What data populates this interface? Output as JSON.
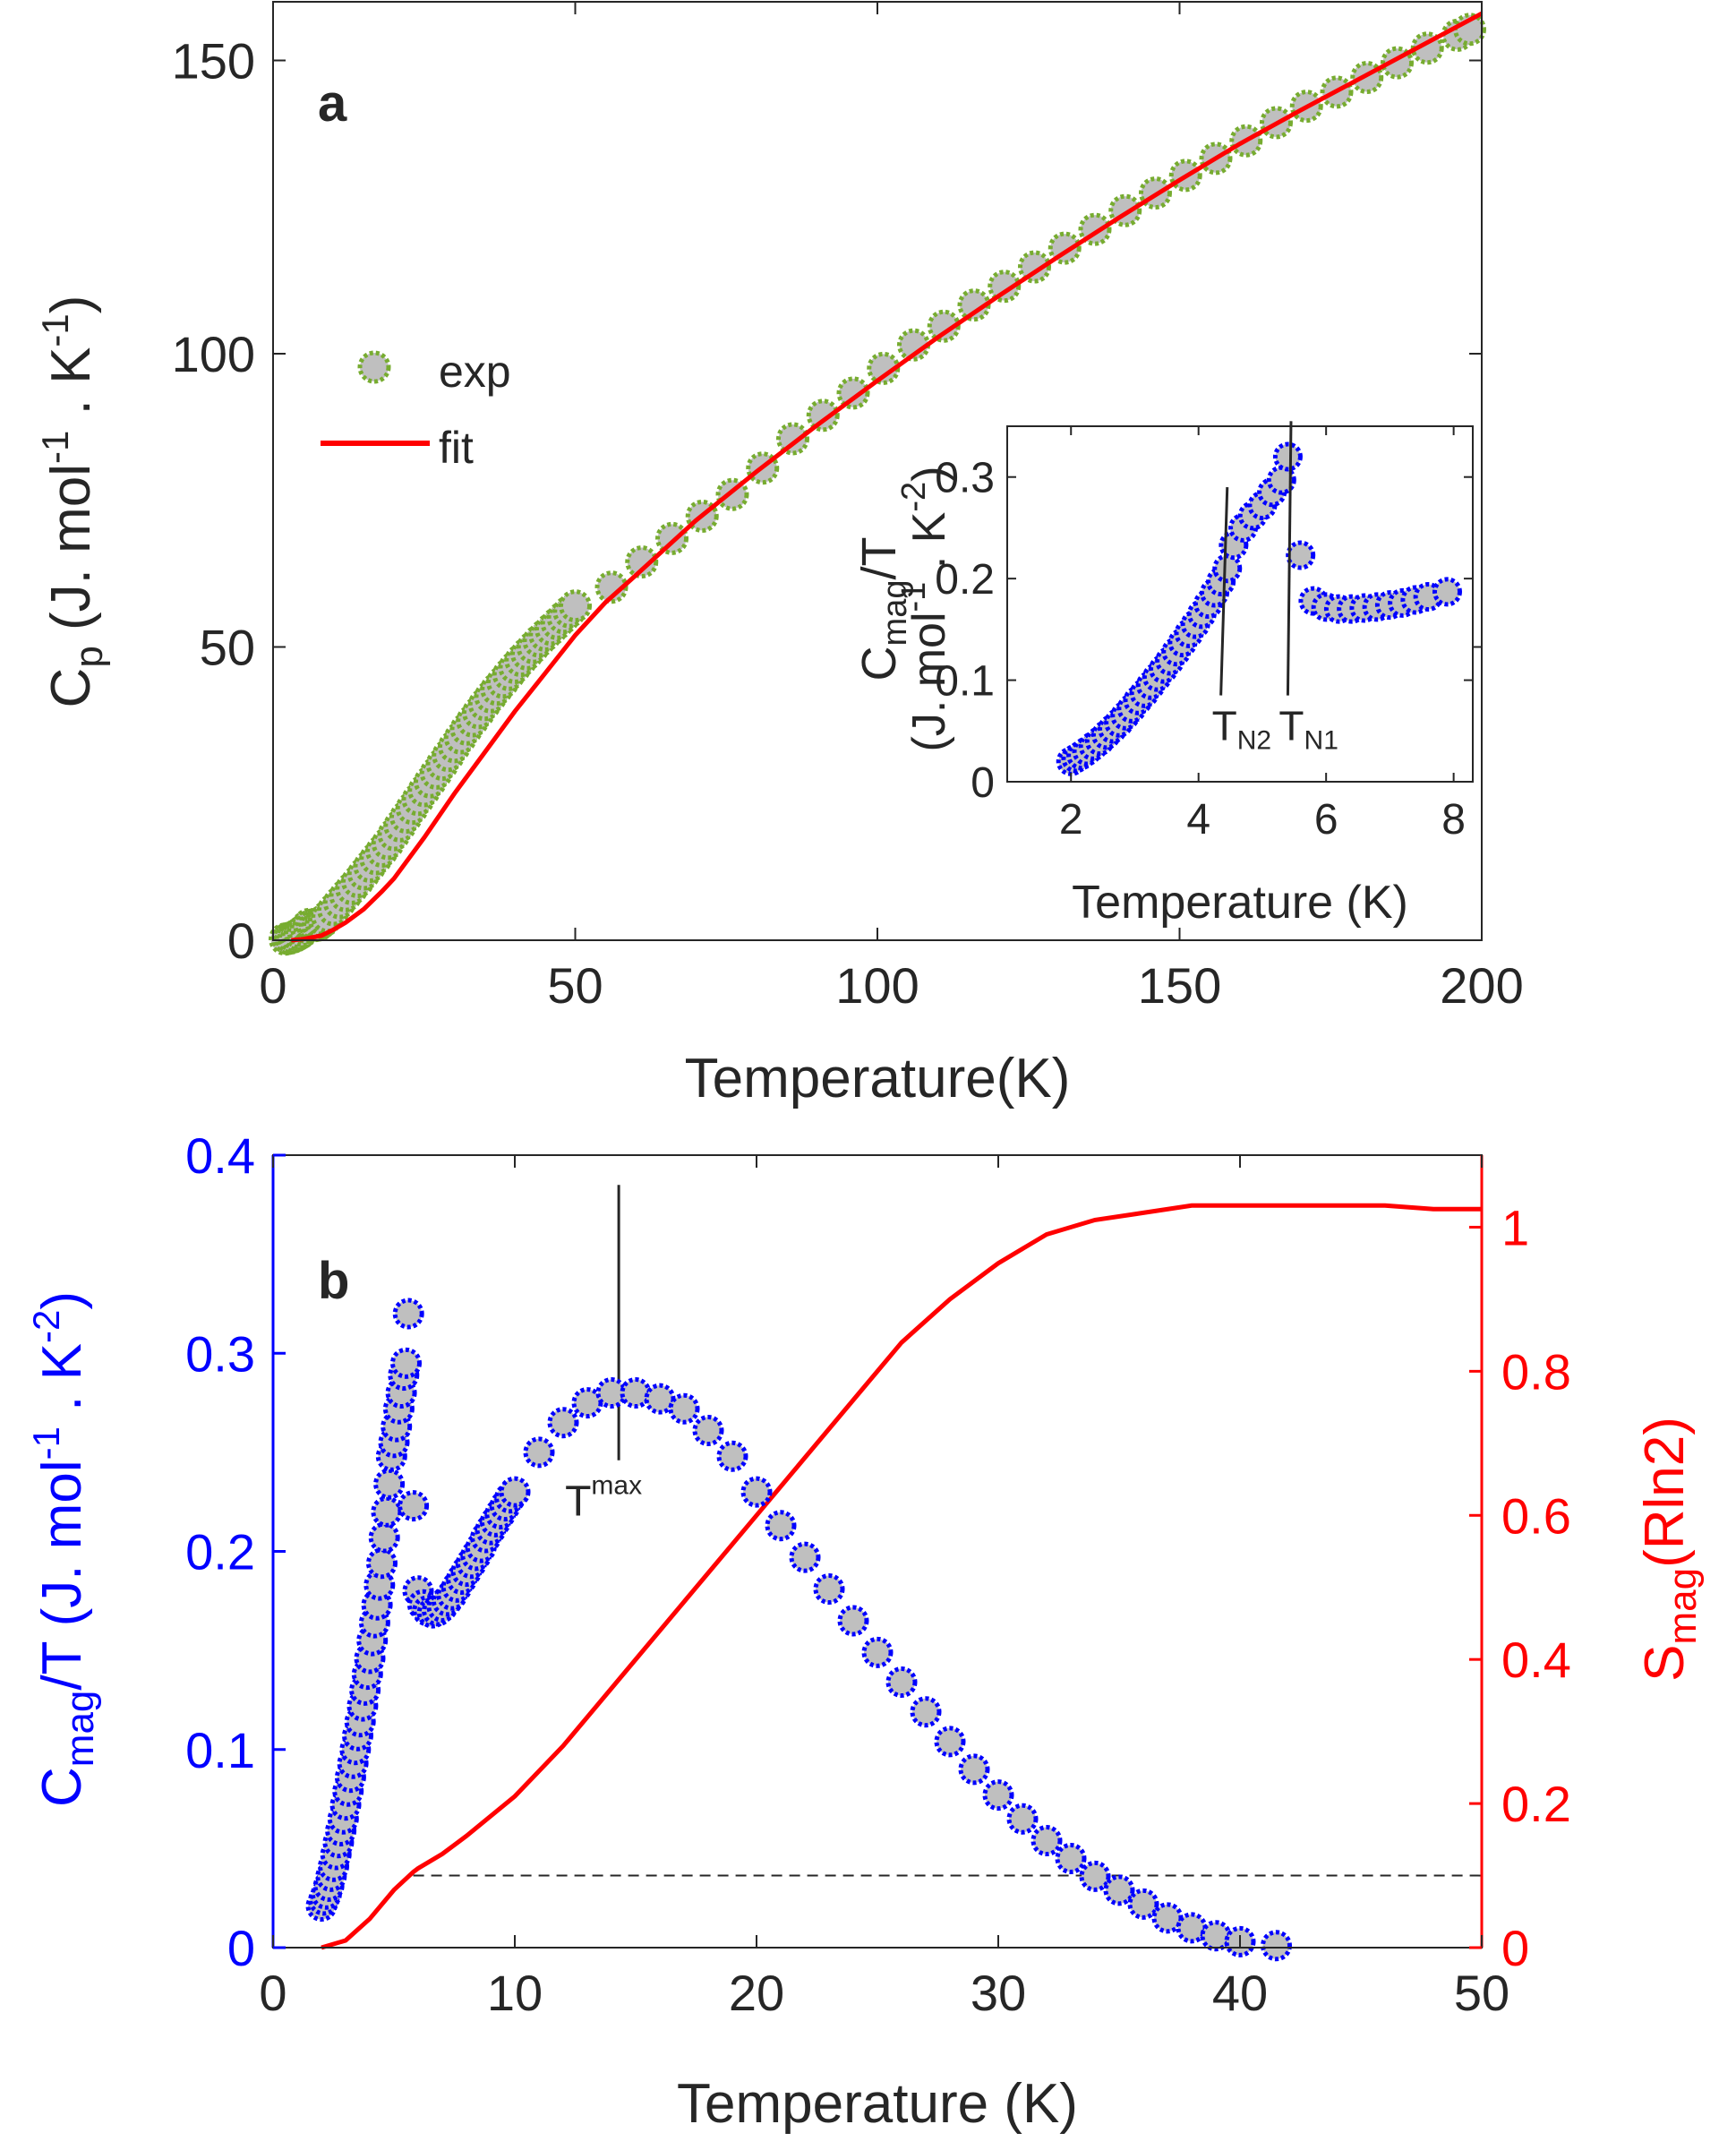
{
  "colors": {
    "exp_face": "#bfbfbf",
    "exp_edge": "#77ac30",
    "fit_line": "#ff0000",
    "blue_marker_face": "#bfbfbf",
    "blue_marker_edge": "#0000ff",
    "blue_axis": "#0000ff",
    "red_axis": "#ff0000",
    "axis": "#262626",
    "text": "#262626"
  },
  "chart_data": [
    {
      "id": "a",
      "panel_label": "a",
      "type": "scatter",
      "xlabel": "Temperature(K)",
      "ylabel": {
        "main": "C",
        "sub": "p",
        "rest_before": " (J. mol",
        "sup1": "-1",
        "mid": " . K",
        "sup2": "-1",
        "close": ")"
      },
      "xlim": [
        0,
        200
      ],
      "ylim": [
        0,
        160
      ],
      "xticks": [
        "0",
        "50",
        "100",
        "150",
        "200"
      ],
      "yticks": [
        "0",
        "50",
        "100",
        "150"
      ],
      "legend": {
        "position": "upper-left",
        "items": [
          {
            "label": "exp",
            "kind": "marker"
          },
          {
            "label": "fit",
            "kind": "line"
          }
        ]
      },
      "series": [
        {
          "name": "exp",
          "x": [
            2,
            2.5,
            3,
            3.5,
            4,
            4.5,
            5,
            5.5,
            6,
            6.5,
            7,
            7.5,
            8,
            8.5,
            9,
            10,
            11,
            12,
            13,
            14,
            15,
            16,
            17,
            18,
            19,
            20,
            21,
            22,
            23,
            24,
            25,
            26,
            27,
            28,
            29,
            30,
            31,
            32,
            33,
            34,
            35,
            36,
            37,
            38,
            39,
            40,
            41,
            42,
            43,
            44,
            45,
            46,
            47,
            48,
            49,
            50,
            56,
            61,
            66,
            71,
            76,
            81,
            86,
            91,
            96,
            101,
            106,
            111,
            116,
            121,
            126,
            131,
            136,
            141,
            146,
            151,
            156,
            161,
            166,
            171,
            176,
            181,
            186,
            191,
            196,
            198
          ],
          "y": [
            0.2,
            0.3,
            0.4,
            0.6,
            0.9,
            1.2,
            1.6,
            2.2,
            2.7,
            2.6,
            2.5,
            2.6,
            3.0,
            3.4,
            4.0,
            5.2,
            6.4,
            7.6,
            8.8,
            10.0,
            11.3,
            12.6,
            13.9,
            15.2,
            16.5,
            18.0,
            19.5,
            21.0,
            22.5,
            24.0,
            25.5,
            27.0,
            28.5,
            30.0,
            31.5,
            33.0,
            34.5,
            36.0,
            37.4,
            38.8,
            40.2,
            41.5,
            42.8,
            44.0,
            45.3,
            46.5,
            47.7,
            48.8,
            49.9,
            51.0,
            52.0,
            53.0,
            54.0,
            55.0,
            56.0,
            57.0,
            60.2,
            64.5,
            68.5,
            72.3,
            76.0,
            80.5,
            85.5,
            89.5,
            93.3,
            97.5,
            101.5,
            104.7,
            108.3,
            111.5,
            114.8,
            118.0,
            121.2,
            124.4,
            127.4,
            130.4,
            133.3,
            136.3,
            139.4,
            142.2,
            144.6,
            147.1,
            149.6,
            152.1,
            154.3,
            155.3
          ]
        },
        {
          "name": "fit",
          "x": [
            3,
            5,
            8,
            10,
            12,
            15,
            18,
            20,
            25,
            30,
            35,
            40,
            45,
            50,
            55,
            60,
            70,
            80,
            90,
            100,
            110,
            120,
            130,
            140,
            150,
            160,
            170,
            180,
            190,
            200
          ],
          "y": [
            0.0,
            0.2,
            0.8,
            1.8,
            3.0,
            5.3,
            8.3,
            10.5,
            17.5,
            25.0,
            32.0,
            39.0,
            45.5,
            52.0,
            57.6,
            62.2,
            71.6,
            79.9,
            87.8,
            95.4,
            102.8,
            109.8,
            116.6,
            123.2,
            129.6,
            135.8,
            141.5,
            147.0,
            152.5,
            158.0
          ]
        }
      ]
    },
    {
      "id": "a-inset",
      "type": "scatter",
      "xlabel": "Temperature (K)",
      "ylabel_line1": {
        "main": "C",
        "sub": "mag",
        "rest": "/T"
      },
      "ylabel_line2": {
        "open": "(J. mol",
        "sup1": "-1",
        "mid": " . K",
        "sup2": "-2",
        "close": ")"
      },
      "xlim": [
        1,
        8.3
      ],
      "ylim": [
        0,
        0.35
      ],
      "xticks": [
        "2",
        "4",
        "6",
        "8"
      ],
      "yticks": [
        "0",
        "0.1",
        "0.2",
        "0.3"
      ],
      "annotations": [
        {
          "label_main": "T",
          "label_sub": "N2",
          "x": 4.5
        },
        {
          "label_main": "T",
          "label_sub": "N1",
          "x": 5.4
        }
      ],
      "series": [
        {
          "name": "Cmag/T",
          "x": [
            2.0,
            2.08,
            2.16,
            2.25,
            2.35,
            2.45,
            2.55,
            2.65,
            2.75,
            2.85,
            2.95,
            3.05,
            3.15,
            3.25,
            3.35,
            3.45,
            3.55,
            3.65,
            3.75,
            3.85,
            3.95,
            4.05,
            4.15,
            4.25,
            4.35,
            4.45,
            4.55,
            4.7,
            4.85,
            5.0,
            5.15,
            5.3,
            5.4,
            5.6,
            5.8,
            6.0,
            6.2,
            6.4,
            6.6,
            6.8,
            7.0,
            7.2,
            7.4,
            7.6,
            7.9
          ],
          "y": [
            0.02,
            0.023,
            0.026,
            0.03,
            0.035,
            0.04,
            0.046,
            0.052,
            0.058,
            0.065,
            0.072,
            0.08,
            0.087,
            0.095,
            0.103,
            0.111,
            0.119,
            0.128,
            0.137,
            0.146,
            0.155,
            0.165,
            0.175,
            0.186,
            0.197,
            0.21,
            0.233,
            0.25,
            0.262,
            0.272,
            0.285,
            0.297,
            0.32,
            0.223,
            0.178,
            0.172,
            0.17,
            0.17,
            0.171,
            0.172,
            0.174,
            0.176,
            0.179,
            0.182,
            0.187
          ]
        }
      ]
    },
    {
      "id": "b",
      "panel_label": "b",
      "type": "scatter",
      "xlabel": "Temperature (K)",
      "ylabel_left": {
        "main": "C",
        "sub": "mag",
        "rest_before": "/T (J. mol",
        "sup1": "-1",
        "mid": " . K",
        "sup2": "-2",
        "close": ")"
      },
      "ylabel_right": {
        "main": "S",
        "sub": "mag",
        "rest": "(Rln2)"
      },
      "xlim": [
        0,
        50
      ],
      "ylim_left": [
        0,
        0.4
      ],
      "ylim_right": [
        0,
        1.1
      ],
      "xticks": [
        "0",
        "10",
        "20",
        "30",
        "40",
        "50"
      ],
      "yticks_left": [
        "0",
        "0.1",
        "0.2",
        "0.3",
        "0.4"
      ],
      "yticks_right": [
        "0",
        "0.2",
        "0.4",
        "0.6",
        "0.8",
        "1"
      ],
      "annotation": {
        "label_main": "T",
        "label_sup": "max",
        "x": 14.3
      },
      "dashed_level_right": 0.1,
      "dashed_x_start": 5.8,
      "series": [
        {
          "name": "Cmag/T",
          "axis": "left",
          "x": [
            2.0,
            2.1,
            2.2,
            2.3,
            2.4,
            2.5,
            2.6,
            2.7,
            2.8,
            2.9,
            3.0,
            3.1,
            3.2,
            3.3,
            3.4,
            3.5,
            3.6,
            3.7,
            3.8,
            3.9,
            4.0,
            4.1,
            4.2,
            4.3,
            4.4,
            4.5,
            4.6,
            4.7,
            4.8,
            4.9,
            5.0,
            5.1,
            5.2,
            5.3,
            5.4,
            5.5,
            5.6,
            5.8,
            6.0,
            6.2,
            6.4,
            6.6,
            6.8,
            7.0,
            7.2,
            7.4,
            7.6,
            7.8,
            8.0,
            8.2,
            8.4,
            8.6,
            8.8,
            9.0,
            9.2,
            9.4,
            9.6,
            9.8,
            10.0,
            11.0,
            12.0,
            13.0,
            14.0,
            15.0,
            16.0,
            17.0,
            18.0,
            19.0,
            20.0,
            21.0,
            22.0,
            23.0,
            24.0,
            25.0,
            26.0,
            27.0,
            28.0,
            29.0,
            30.0,
            31.0,
            32.0,
            33.0,
            34.0,
            35.0,
            36.0,
            37.0,
            38.0,
            39.0,
            40.0,
            41.5
          ],
          "y": [
            0.021,
            0.024,
            0.027,
            0.031,
            0.036,
            0.041,
            0.047,
            0.053,
            0.059,
            0.065,
            0.072,
            0.079,
            0.086,
            0.093,
            0.1,
            0.107,
            0.114,
            0.122,
            0.13,
            0.138,
            0.146,
            0.155,
            0.164,
            0.173,
            0.183,
            0.194,
            0.207,
            0.22,
            0.234,
            0.248,
            0.255,
            0.263,
            0.272,
            0.28,
            0.289,
            0.295,
            0.32,
            0.223,
            0.18,
            0.173,
            0.17,
            0.169,
            0.17,
            0.172,
            0.175,
            0.178,
            0.182,
            0.186,
            0.19,
            0.194,
            0.198,
            0.202,
            0.207,
            0.211,
            0.215,
            0.219,
            0.223,
            0.227,
            0.23,
            0.25,
            0.265,
            0.275,
            0.28,
            0.28,
            0.277,
            0.272,
            0.261,
            0.248,
            0.23,
            0.213,
            0.197,
            0.181,
            0.165,
            0.149,
            0.134,
            0.119,
            0.104,
            0.09,
            0.077,
            0.065,
            0.054,
            0.045,
            0.036,
            0.029,
            0.022,
            0.015,
            0.01,
            0.006,
            0.003,
            0.001
          ]
        },
        {
          "name": "Smag",
          "axis": "right",
          "x": [
            2,
            3,
            4,
            5,
            5.8,
            6,
            7,
            8,
            10,
            12,
            14,
            16,
            18,
            20,
            22,
            24,
            26,
            28,
            30,
            32,
            34,
            36,
            38,
            40,
            42,
            44,
            46,
            48,
            50
          ],
          "y": [
            0.0,
            0.01,
            0.04,
            0.08,
            0.105,
            0.11,
            0.13,
            0.155,
            0.21,
            0.28,
            0.36,
            0.44,
            0.52,
            0.6,
            0.68,
            0.76,
            0.84,
            0.9,
            0.95,
            0.99,
            1.01,
            1.02,
            1.03,
            1.03,
            1.03,
            1.03,
            1.03,
            1.025,
            1.025
          ]
        }
      ]
    }
  ]
}
